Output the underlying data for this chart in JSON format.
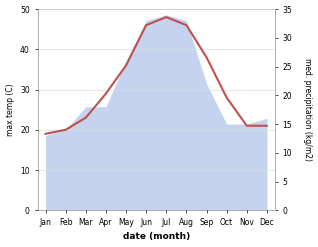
{
  "months": [
    "Jan",
    "Feb",
    "Mar",
    "Apr",
    "May",
    "Jun",
    "Jul",
    "Aug",
    "Sep",
    "Oct",
    "Nov",
    "Dec"
  ],
  "temp_max": [
    19,
    20,
    23,
    29,
    36,
    46,
    48,
    46,
    38,
    28,
    21,
    21
  ],
  "precip": [
    13,
    14,
    18,
    18,
    26,
    33,
    34,
    33,
    22,
    15,
    15,
    16
  ],
  "temp_color": "#c0504d",
  "precip_color": "#c5d3ee",
  "temp_ylim": [
    0,
    50
  ],
  "precip_ylim": [
    0,
    35
  ],
  "temp_yticks": [
    0,
    10,
    20,
    30,
    40,
    50
  ],
  "precip_yticks": [
    0,
    5,
    10,
    15,
    20,
    25,
    30,
    35
  ],
  "xlabel": "date (month)",
  "ylabel_left": "max temp (C)",
  "ylabel_right": "med. precipitation (kg/m2)",
  "bg_color": "#ffffff",
  "grid_color": "#dddddd",
  "figwidth": 3.18,
  "figheight": 2.47,
  "dpi": 100
}
